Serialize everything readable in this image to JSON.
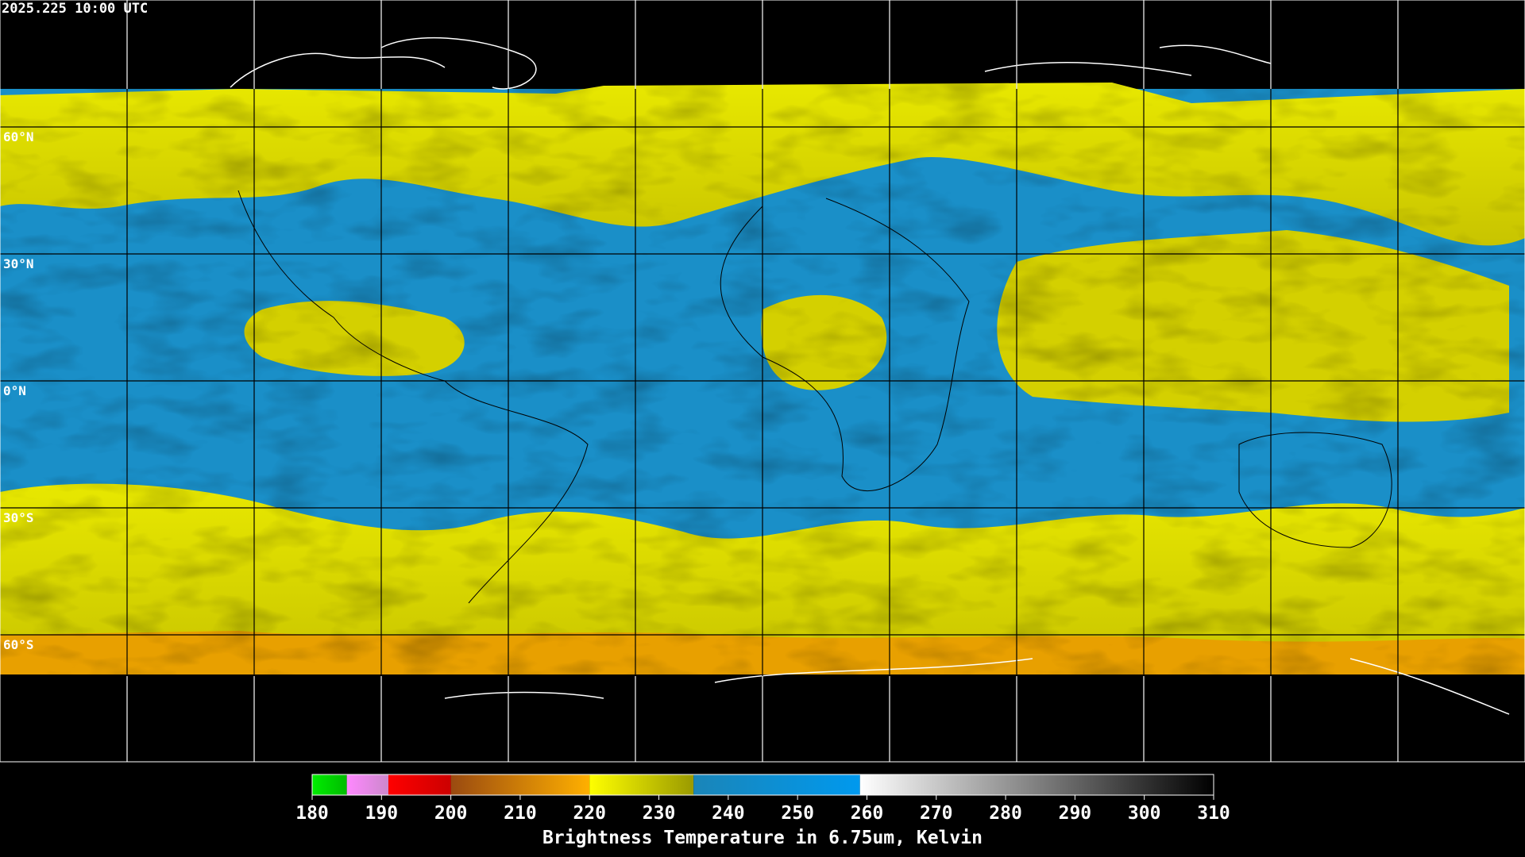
{
  "header": {
    "timestamp": "2025.225 10:00 UTC"
  },
  "map": {
    "latitude_ticks": [
      {
        "value": 60,
        "label": "60°N"
      },
      {
        "value": 30,
        "label": "30°N"
      },
      {
        "value": 0,
        "label": "0°N"
      },
      {
        "value": -30,
        "label": "30°S"
      },
      {
        "value": -60,
        "label": "60°S"
      }
    ]
  },
  "colorbar": {
    "title": "Brightness Temperature in 6.75um, Kelvin",
    "range": [
      180,
      310
    ],
    "ticks": [
      180,
      190,
      200,
      210,
      220,
      230,
      240,
      250,
      260,
      270,
      280,
      290,
      300,
      310
    ],
    "segments": [
      {
        "from": 180,
        "to": 185,
        "colors": [
          "#00ee00",
          "#00bb00"
        ]
      },
      {
        "from": 185,
        "to": 191,
        "colors": [
          "#ff88ff",
          "#cc88cc"
        ]
      },
      {
        "from": 191,
        "to": 200,
        "colors": [
          "#ff0000",
          "#cc0000"
        ]
      },
      {
        "from": 200,
        "to": 220,
        "colors": [
          "#9a4a10",
          "#ffb000"
        ]
      },
      {
        "from": 220,
        "to": 235,
        "colors": [
          "#ffff00",
          "#9a9a00"
        ]
      },
      {
        "from": 235,
        "to": 259,
        "colors": [
          "#1a85b8",
          "#0099ee"
        ]
      },
      {
        "from": 259,
        "to": 310,
        "colors": [
          "#ffffff",
          "#000000"
        ]
      }
    ]
  }
}
